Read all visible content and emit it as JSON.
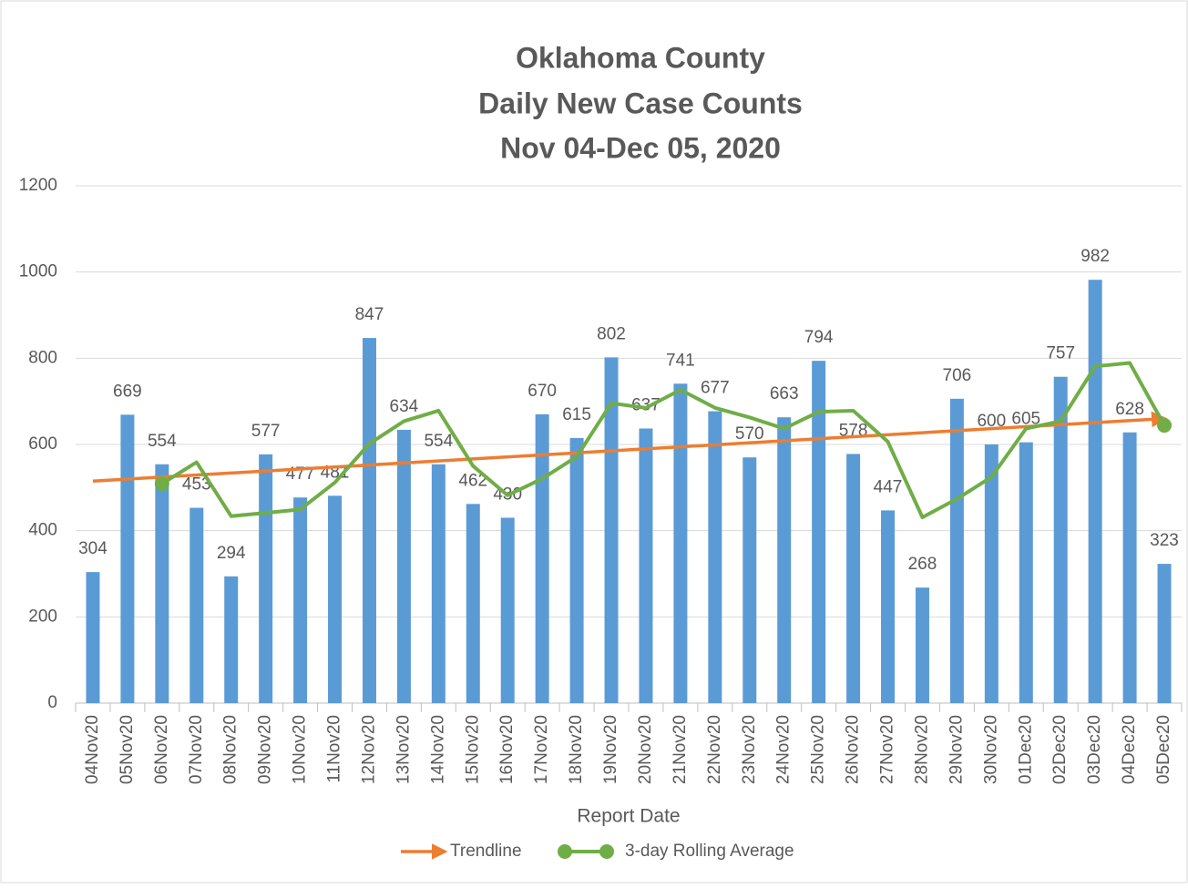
{
  "chart_data": {
    "type": "bar",
    "title": [
      "Oklahoma County",
      "Daily New Case Counts",
      "Nov 04-Dec 05, 2020"
    ],
    "x_label": "Report Date",
    "categories": [
      "04Nov20",
      "05Nov20",
      "06Nov20",
      "07Nov20",
      "08Nov20",
      "09Nov20",
      "10Nov20",
      "11Nov20",
      "12Nov20",
      "13Nov20",
      "14Nov20",
      "15Nov20",
      "16Nov20",
      "17Nov20",
      "18Nov20",
      "19Nov20",
      "20Nov20",
      "21Nov20",
      "22Nov20",
      "23Nov20",
      "24Nov20",
      "25Nov20",
      "26Nov20",
      "27Nov20",
      "28Nov20",
      "29Nov20",
      "30Nov20",
      "01Dec20",
      "02Dec20",
      "03Dec20",
      "04Dec20",
      "05Dec20"
    ],
    "values": [
      304,
      669,
      554,
      453,
      294,
      577,
      477,
      481,
      847,
      634,
      554,
      462,
      430,
      670,
      615,
      802,
      637,
      741,
      677,
      570,
      663,
      794,
      578,
      447,
      268,
      706,
      600,
      605,
      757,
      982,
      628,
      323
    ],
    "color": "#5b9bd5",
    "series": [
      {
        "name": "3-day Rolling Average",
        "color": "#70ad47",
        "values": [
          null,
          null,
          509,
          558.7,
          433.7,
          441.3,
          449.3,
          511.7,
          601.7,
          654,
          678.3,
          550,
          482,
          520.7,
          571.7,
          695.7,
          684.7,
          726.7,
          685,
          662.7,
          636.7,
          675.7,
          678.3,
          606.3,
          431,
          473.7,
          524.7,
          637,
          654,
          781.3,
          789,
          644.3
        ]
      }
    ],
    "trendline": {
      "name": "Trendline",
      "color": "#ed7d31",
      "start": 515,
      "end": 660
    },
    "ylim": [
      0,
      1200
    ],
    "yticks": [
      0,
      200,
      400,
      600,
      800,
      1000,
      1200
    ],
    "grid": true
  }
}
